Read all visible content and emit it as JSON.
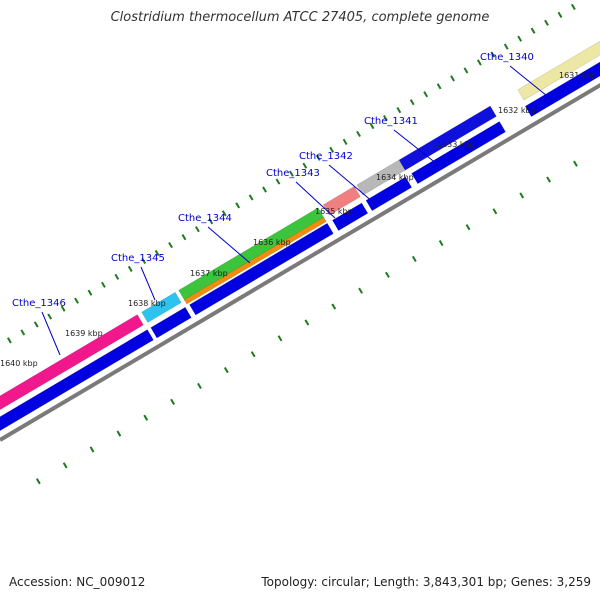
{
  "title": "Clostridium thermocellum ATCC 27405, complete genome",
  "footer": {
    "accession": "Accession: NC_009012",
    "summary": "Topology: circular; Length: 3,843,301 bp; Genes: 3,259"
  },
  "colors": {
    "backbone": "#7a7a7a",
    "tick": "#1e7a1e",
    "gene_label": "#0000cc",
    "cds": "#0000e0"
  },
  "kbp_labels": [
    {
      "kbp": 1631,
      "text": "1631 kbp"
    },
    {
      "kbp": 1632,
      "text": "1632 kbp"
    },
    {
      "kbp": 1633,
      "text": "1633 kbp"
    },
    {
      "kbp": 1634,
      "text": "1634 kbp"
    },
    {
      "kbp": 1635,
      "text": "1635 kbp"
    },
    {
      "kbp": 1636,
      "text": "1636 kbp"
    },
    {
      "kbp": 1637,
      "text": "1637 kbp"
    },
    {
      "kbp": 1638,
      "text": "1638 kbp"
    },
    {
      "kbp": 1639,
      "text": "1639 kbp"
    },
    {
      "kbp": 1640,
      "text": "1640 kbp"
    }
  ],
  "genes": [
    {
      "name": "Cthe_1340",
      "color": "#ece8a4"
    },
    {
      "name": "Cthe_1341",
      "color": "#1010dd"
    },
    {
      "name": "Cthe_1342",
      "color": "#b8b8b8"
    },
    {
      "name": "Cthe_1343",
      "color": "#f08080"
    },
    {
      "name": "Cthe_1344",
      "color": "#3cc43c"
    },
    {
      "name": "Cthe_1345",
      "color": "#2cc4ee"
    },
    {
      "name": "Cthe_1346",
      "color": "#f0188c"
    }
  ],
  "secondary_band_color": "#f08c10"
}
